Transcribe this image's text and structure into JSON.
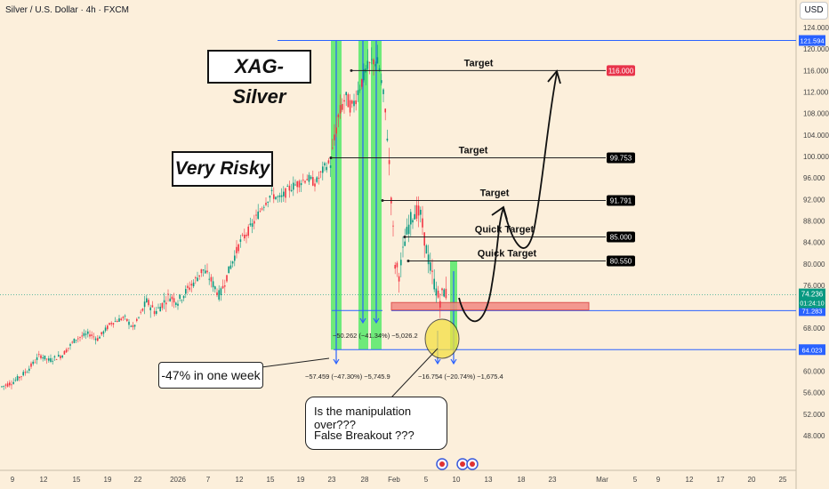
{
  "header": {
    "symbol": "Silver / U.S. Dollar · 4h · FXCM",
    "currency": "USD"
  },
  "boxes": {
    "title": "XAG-Silver",
    "risk": "Very Risky"
  },
  "callouts": {
    "week": "-47% in one week",
    "manip": "Is the manipulation over???",
    "fb": "False Breakout ???"
  },
  "measures": {
    "m1": "−50.262 (−41.34%) −5,026.2",
    "m2": "−57.459 (−47.30%) −5,745.9",
    "m3": "−16.754 (−20.74%) −1,675.4"
  },
  "chart_data": {
    "type": "candlestick",
    "title": "Silver / U.S. Dollar · 4h · FXCM",
    "ylim": [
      44,
      126
    ],
    "yticks": [
      48,
      52,
      56,
      60,
      64,
      68,
      72,
      76,
      80,
      84,
      88,
      92,
      96,
      100,
      104,
      108,
      112,
      116,
      120,
      124
    ],
    "xticks": [
      {
        "label": "9",
        "px": 14
      },
      {
        "label": "12",
        "px": 49
      },
      {
        "label": "15",
        "px": 86
      },
      {
        "label": "19",
        "px": 121
      },
      {
        "label": "22",
        "px": 155
      },
      {
        "label": "2026",
        "px": 200
      },
      {
        "label": "7",
        "px": 234
      },
      {
        "label": "12",
        "px": 269
      },
      {
        "label": "15",
        "px": 304
      },
      {
        "label": "19",
        "px": 338
      },
      {
        "label": "23",
        "px": 373
      },
      {
        "label": "28",
        "px": 410
      },
      {
        "label": "Feb",
        "px": 443
      },
      {
        "label": "5",
        "px": 479
      },
      {
        "label": "10",
        "px": 513
      },
      {
        "label": "13",
        "px": 549
      },
      {
        "label": "18",
        "px": 586
      },
      {
        "label": "23",
        "px": 621
      },
      {
        "label": "Mar",
        "px": 677
      },
      {
        "label": "5",
        "px": 714
      },
      {
        "label": "9",
        "px": 740
      },
      {
        "label": "12",
        "px": 775
      },
      {
        "label": "17",
        "px": 810
      },
      {
        "label": "20",
        "px": 845
      },
      {
        "label": "25",
        "px": 880
      }
    ],
    "target_levels": [
      {
        "label": "Target",
        "value": 116.0,
        "price_label": "116.000",
        "color": "#e8334a"
      },
      {
        "label": "Target",
        "value": 99.753,
        "price_label": "99.753",
        "color": "#000000"
      },
      {
        "label": "Target",
        "value": 91.791,
        "price_label": "91.791",
        "color": "#000000"
      },
      {
        "label": "Quick Target",
        "value": 85.0,
        "price_label": "85.000",
        "color": "#000000"
      },
      {
        "label": "Quick Target",
        "value": 80.55,
        "price_label": "80.550",
        "color": "#000000"
      }
    ],
    "horizontal_lines": [
      {
        "value": 121.594,
        "price_label": "121.594"
      },
      {
        "value": 71.283,
        "price_label": "71.283"
      },
      {
        "value": 64.023,
        "price_label": "64.023"
      }
    ],
    "current_price": {
      "value": 74.236,
      "price_label": "74.236",
      "countdown": "01:24:10"
    },
    "zone": {
      "low": 71.4,
      "high": 72.8
    }
  }
}
